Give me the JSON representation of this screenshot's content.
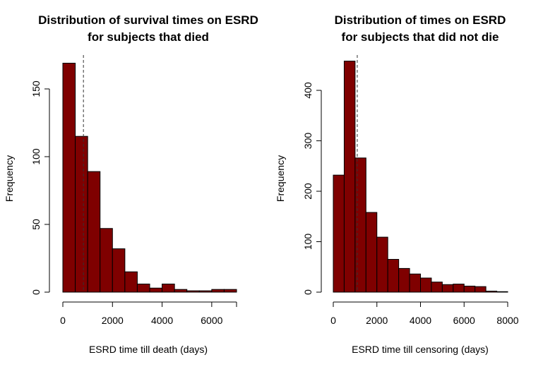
{
  "chart_data": [
    {
      "type": "bar",
      "title_lines": [
        "Distribution of survival times on ESRD",
        "for subjects that died"
      ],
      "xlabel": "ESRD time till death (days)",
      "ylabel": "Frequency",
      "bin_width": 500,
      "bin_start": 0,
      "values": [
        169,
        115,
        89,
        47,
        32,
        15,
        6,
        3,
        6,
        2,
        1,
        1,
        2,
        2
      ],
      "xlim": [
        0,
        7000
      ],
      "ylim": [
        0,
        175
      ],
      "x_ticks": [
        0,
        2000,
        4000,
        6000
      ],
      "x_axis_end": 7000,
      "y_ticks": [
        0,
        50,
        100,
        150
      ],
      "reference_line_x": 830,
      "bar_color": "#7f0000",
      "grid": false
    },
    {
      "type": "bar",
      "title_lines": [
        "Distribution of times on ESRD",
        "for subjects that did not die"
      ],
      "xlabel": "ESRD time till censoring (days)",
      "ylabel": "Frequency",
      "bin_width": 500,
      "bin_start": 0,
      "values": [
        232,
        458,
        266,
        158,
        109,
        65,
        47,
        36,
        28,
        20,
        15,
        16,
        12,
        11,
        2,
        1
      ],
      "xlim": [
        0,
        8000
      ],
      "ylim": [
        0,
        470
      ],
      "x_ticks": [
        0,
        2000,
        4000,
        6000,
        8000
      ],
      "x_axis_end": 8000,
      "y_ticks": [
        0,
        100,
        200,
        300,
        400
      ],
      "reference_line_x": 1100,
      "bar_color": "#7f0000",
      "grid": false
    }
  ]
}
